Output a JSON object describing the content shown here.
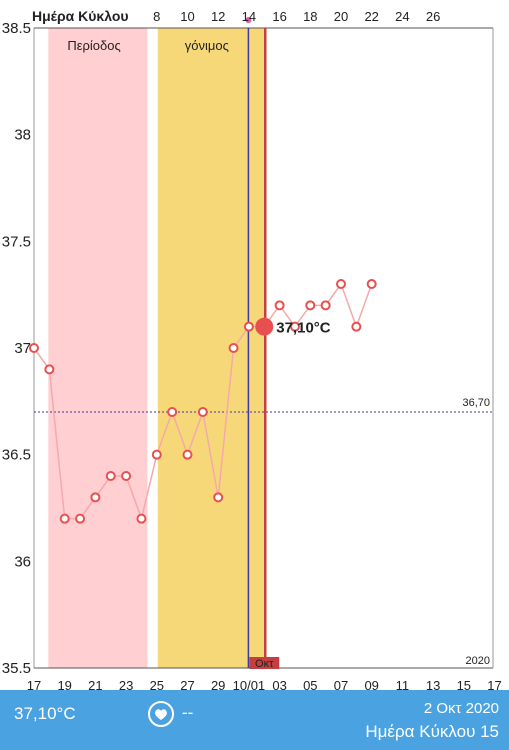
{
  "header": {
    "title": "Ημέρα Κύκλου",
    "cycle_day_labels": [
      "8",
      "10",
      "12",
      "14",
      "16",
      "18",
      "20",
      "22",
      "24",
      "26"
    ]
  },
  "phases": {
    "period_label": "Περίοδος",
    "fertile_label": "γόνιμος"
  },
  "colors": {
    "period": "#ffcfd2",
    "fertile": "#f7d878",
    "line": "#f4a9ac",
    "point": "#e8504f",
    "ovulation_line": "#c44040",
    "today_line": "#3a3aa0",
    "baseline": "#3a3aa0",
    "footer": "#4aa3e0",
    "phase_text": "#7aa6d6"
  },
  "chart_data": {
    "type": "line",
    "x": [
      "17",
      "18",
      "19",
      "20",
      "21",
      "22",
      "23",
      "24",
      "25",
      "26",
      "27",
      "28",
      "29",
      "30",
      "10/01",
      "02",
      "03",
      "04",
      "05",
      "06",
      "07",
      "08",
      "09"
    ],
    "y_tick_labels": [
      "38.5",
      "38",
      "37.5",
      "37",
      "36.5",
      "36",
      "35.5"
    ],
    "x_tick_labels": [
      "17",
      "19",
      "21",
      "23",
      "25",
      "27",
      "29",
      "10/01",
      "03",
      "05",
      "07",
      "09",
      "11",
      "13",
      "15",
      "17"
    ],
    "ylim": [
      35.5,
      38.5
    ],
    "values": [
      37.0,
      36.9,
      36.2,
      36.2,
      36.3,
      36.4,
      36.4,
      36.2,
      36.5,
      36.7,
      36.5,
      36.7,
      36.3,
      37.0,
      37.1,
      37.1,
      37.2,
      37.1,
      37.2,
      37.2,
      37.3,
      37.1,
      37.3
    ],
    "highlight_index": 15,
    "highlight_label": "37,10°C",
    "coverline": 36.7,
    "coverline_label": "36,70",
    "month_label": "Οκτ",
    "year_label": "2020",
    "period_range": [
      "18",
      "23"
    ],
    "fertile_range": [
      "25",
      "02"
    ]
  },
  "footer": {
    "temperature": "37,10°C",
    "heart_icon": "heart-icon",
    "dash": "--",
    "date": "2 Οκτ 2020",
    "cycle_day": "Ημέρα Κύκλου 15"
  }
}
